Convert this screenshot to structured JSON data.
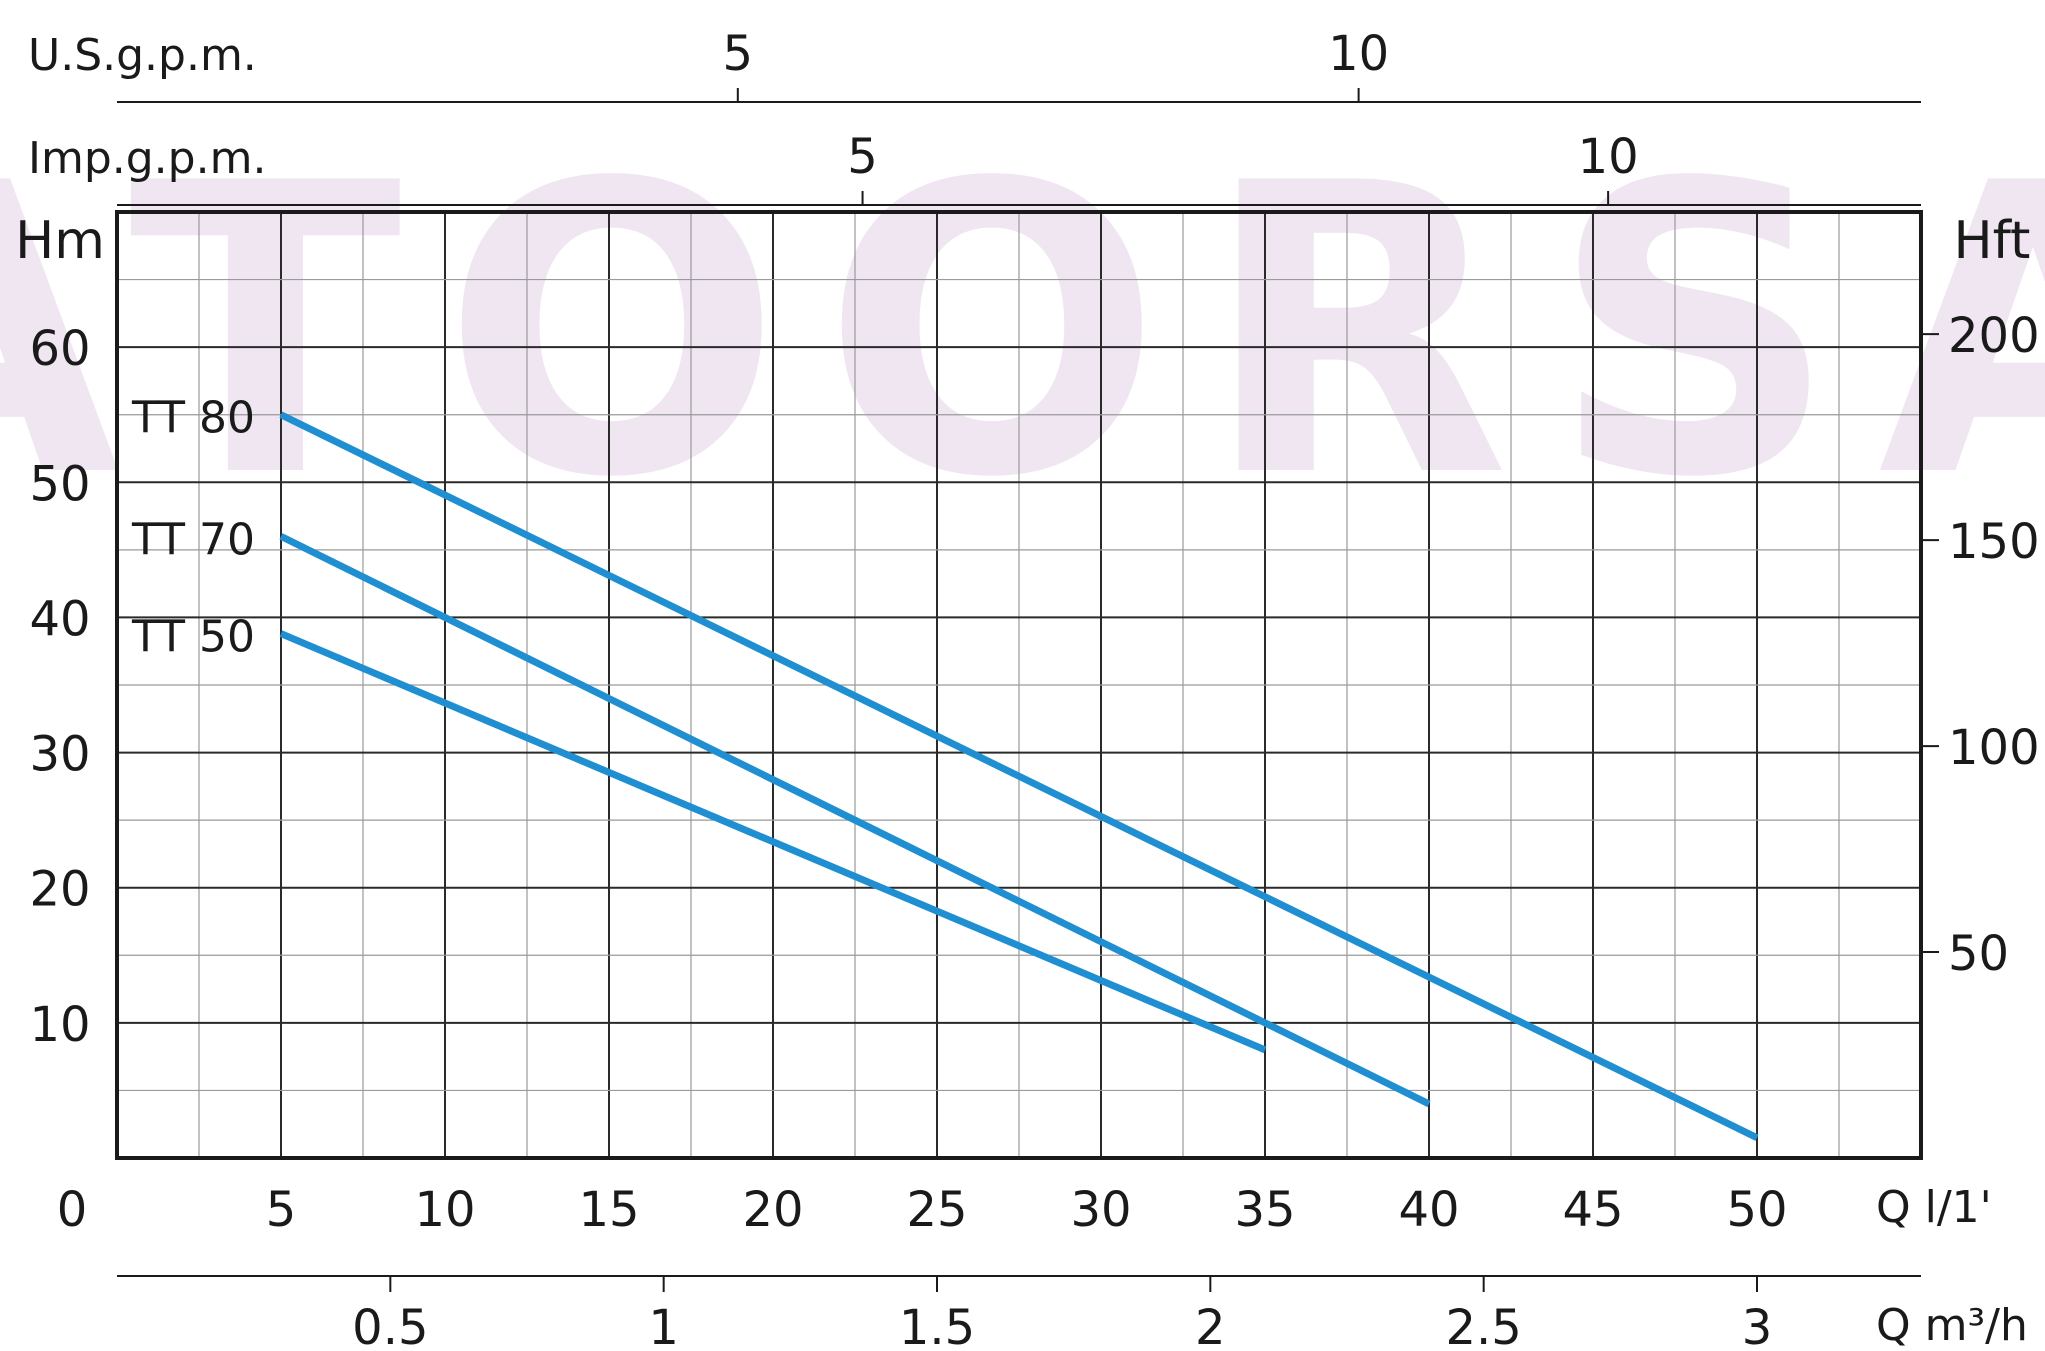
{
  "chart_data": {
    "type": "line",
    "title": "",
    "watermark": "ATOORSA",
    "colors": {
      "curve": "#1f8fd2",
      "grid_major": "#2a2a2a",
      "grid_minor": "#9a9a9a",
      "frame": "#1a1a1a",
      "watermark": "#efe6f2"
    },
    "grid": true,
    "xlabel": "Q l/1'",
    "ylabel": "Hm",
    "xlim": [
      0,
      55
    ],
    "ylim": [
      0,
      70
    ],
    "x_ticks": [
      0,
      5,
      10,
      15,
      20,
      25,
      30,
      35,
      40,
      45,
      50
    ],
    "y_ticks": [
      10,
      20,
      30,
      40,
      50,
      60
    ],
    "secondary_axes": {
      "right": {
        "label": "Hft",
        "ticks": [
          50,
          100,
          150,
          200
        ]
      },
      "top_usgpm": {
        "label": "U.S.g.p.m.",
        "ticks": [
          5,
          10
        ]
      },
      "top_impgpm": {
        "label": "Imp.g.p.m.",
        "ticks": [
          5,
          10
        ]
      },
      "bottom_m3h": {
        "label": "Q m³/h",
        "ticks": [
          "0.5",
          "1",
          "1.5",
          "2",
          "2.5",
          "3"
        ]
      }
    },
    "series": [
      {
        "name": "TT 80",
        "x": [
          5,
          50
        ],
        "y": [
          55,
          1.5
        ]
      },
      {
        "name": "TT 70",
        "x": [
          5,
          40
        ],
        "y": [
          46,
          4
        ]
      },
      {
        "name": "TT 50",
        "x": [
          5,
          35
        ],
        "y": [
          38.8,
          8
        ]
      }
    ]
  }
}
